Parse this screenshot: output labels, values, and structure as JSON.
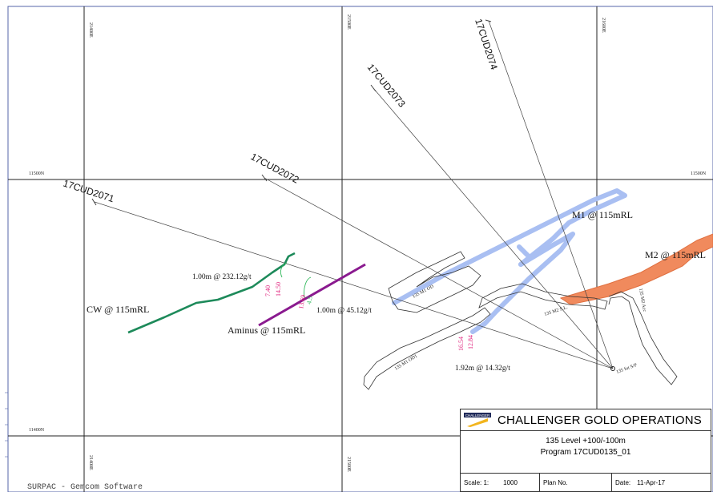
{
  "plan": {
    "company": "CHALLENGER GOLD OPERATIONS",
    "level": "135 Level +100/-100m",
    "program": "Program 17CUD0135_01",
    "scale_label": "Scale: 1:",
    "scale_value": "1000",
    "plan_no_label": "Plan No.",
    "date_label": "Date:",
    "date_value": "11-Apr-17",
    "footer": "SURPAC - Gemcom Software"
  },
  "grid": {
    "eastings_top": [
      "21400E",
      "21500E",
      "21600E"
    ],
    "eastings_bottom": [
      "21400E",
      "21500E"
    ],
    "northing_upper_left": "11500N",
    "northing_upper_right": "11500N",
    "northing_lower_left": "11400N"
  },
  "drillholes": [
    {
      "id": "17CUD2071"
    },
    {
      "id": "17CUD2072"
    },
    {
      "id": "17CUD2073"
    },
    {
      "id": "17CUD2074"
    }
  ],
  "lodes": {
    "m1": "M1 @ 115mRL",
    "m2": "M2 @ 115mRL",
    "cw": "CW @ 115mRL",
    "aminus": "Aminus @ 115mRL"
  },
  "intercepts": {
    "i1": "1.00m @ 232.12g/t",
    "i2": "1.00m @ 45.12g/t",
    "i3": "1.92m @ 14.32g/t"
  },
  "small_values": {
    "a1": "7.40",
    "a2": "14.50",
    "b1": "13.69",
    "b2": "4.5",
    "c1": "16.54",
    "c2": "12.84"
  },
  "drives": {
    "m1_od": "135 M1 OD",
    "m1_od1": "135 M1 OD1",
    "m2_sl": "135 M2 S.L.",
    "m2_acc": "135 M2 Acc",
    "sp": "135 fut S/P"
  },
  "colors": {
    "m1_lode": "#a9bff2",
    "m2_lode": "#f08a5d",
    "cw_lode": "#1d8a5a",
    "aminus_lode": "#8a1a8f",
    "assay_pink": "#e0247e",
    "assay_green": "#2fb85a"
  }
}
